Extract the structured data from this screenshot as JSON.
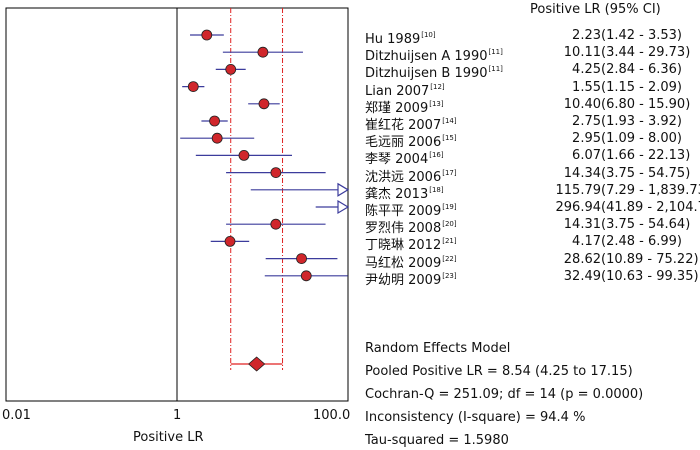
{
  "chart_data": {
    "type": "forest",
    "xlabel": "Positive LR",
    "x_scale": "log",
    "xlim": [
      0.01,
      100.0
    ],
    "x_ticks": [
      {
        "value": 0.01,
        "label": "0.01"
      },
      {
        "value": 1,
        "label": "1"
      },
      {
        "value": 100.0,
        "label": "100.0"
      }
    ],
    "ci_header": "Positive LR (95% CI)",
    "studies": [
      {
        "name": "Hu 1989",
        "ref": "[10]",
        "est": 2.23,
        "lo": 1.42,
        "hi": 3.53,
        "est_text": "2.23",
        "ci_text": "(1.42 - 3.53)",
        "arrow_right": false
      },
      {
        "name": "Ditzhuijsen A 1990",
        "ref": "[11]",
        "est": 10.11,
        "lo": 3.44,
        "hi": 29.73,
        "est_text": "10.11",
        "ci_text": "(3.44 - 29.73)",
        "arrow_right": false
      },
      {
        "name": "Ditzhuijsen B 1990",
        "ref": "[11]",
        "est": 4.25,
        "lo": 2.84,
        "hi": 6.36,
        "est_text": "4.25",
        "ci_text": "(2.84 - 6.36)",
        "arrow_right": false
      },
      {
        "name": "Lian 2007",
        "ref": "[12]",
        "est": 1.55,
        "lo": 1.15,
        "hi": 2.09,
        "est_text": "1.55",
        "ci_text": "(1.15 - 2.09)",
        "arrow_right": false
      },
      {
        "name": "郑瑾 2009",
        "ref": "[13]",
        "est": 10.4,
        "lo": 6.8,
        "hi": 15.9,
        "est_text": "10.40",
        "ci_text": "(6.80 - 15.90)",
        "arrow_right": false
      },
      {
        "name": "崔红花 2007",
        "ref": "[14]",
        "est": 2.75,
        "lo": 1.93,
        "hi": 3.92,
        "est_text": "2.75",
        "ci_text": "(1.93 - 3.92)",
        "arrow_right": false
      },
      {
        "name": "毛远丽 2006",
        "ref": "[15]",
        "est": 2.95,
        "lo": 1.09,
        "hi": 8.0,
        "est_text": "2.95",
        "ci_text": "(1.09 - 8.00)",
        "arrow_right": false
      },
      {
        "name": "李琴 2004",
        "ref": "[16]",
        "est": 6.07,
        "lo": 1.66,
        "hi": 22.13,
        "est_text": "6.07",
        "ci_text": "(1.66 - 22.13)",
        "arrow_right": false
      },
      {
        "name": "沈洪远 2006",
        "ref": "[17]",
        "est": 14.34,
        "lo": 3.75,
        "hi": 54.75,
        "est_text": "14.34",
        "ci_text": "(3.75 - 54.75)",
        "arrow_right": false
      },
      {
        "name": "龚杰 2013",
        "ref": "[18]",
        "est": 115.79,
        "lo": 7.29,
        "hi": 1839.73,
        "est_text": "115.79",
        "ci_text": "(7.29 - 1,839.73)",
        "arrow_right": true
      },
      {
        "name": "陈平平 2009",
        "ref": "[19]",
        "est": 296.94,
        "lo": 41.89,
        "hi": 2104.71,
        "est_text": "296.94",
        "ci_text": "(41.89 - 2,104.71)",
        "arrow_right": true
      },
      {
        "name": "罗烈伟 2008",
        "ref": "[20]",
        "est": 14.31,
        "lo": 3.75,
        "hi": 54.64,
        "est_text": "14.31",
        "ci_text": "(3.75 - 54.64)",
        "arrow_right": false
      },
      {
        "name": "丁晓琳 2012",
        "ref": "[21]",
        "est": 4.17,
        "lo": 2.48,
        "hi": 6.99,
        "est_text": "4.17",
        "ci_text": "(2.48 - 6.99)",
        "arrow_right": false
      },
      {
        "name": "马红松 2009",
        "ref": "[22]",
        "est": 28.62,
        "lo": 10.89,
        "hi": 75.22,
        "est_text": "28.62",
        "ci_text": "(10.89 - 75.22)",
        "arrow_right": false
      },
      {
        "name": "尹幼明 2009",
        "ref": "[23]",
        "est": 32.49,
        "lo": 10.63,
        "hi": 99.35,
        "est_text": "32.49",
        "ci_text": "(10.63 - 99.35)",
        "arrow_right": false
      }
    ],
    "pooled": {
      "est": 8.54,
      "lo": 4.25,
      "hi": 17.15
    },
    "summary_lines": [
      "Random Effects Model",
      "Pooled Positive LR = 8.54 (4.25 to 17.15)",
      "Cochran-Q = 251.09; df = 14 (p = 0.0000)",
      "Inconsistency (I-square) = 94.4 %",
      "Tau-squared = 1.5980"
    ],
    "colors": {
      "marker_fill": "#d0262b",
      "marker_stroke": "#222222",
      "ci_line": "#3c3c9c",
      "pooled_ci_line": "#e02020",
      "null_line": "#000000",
      "frame": "#000000"
    }
  }
}
